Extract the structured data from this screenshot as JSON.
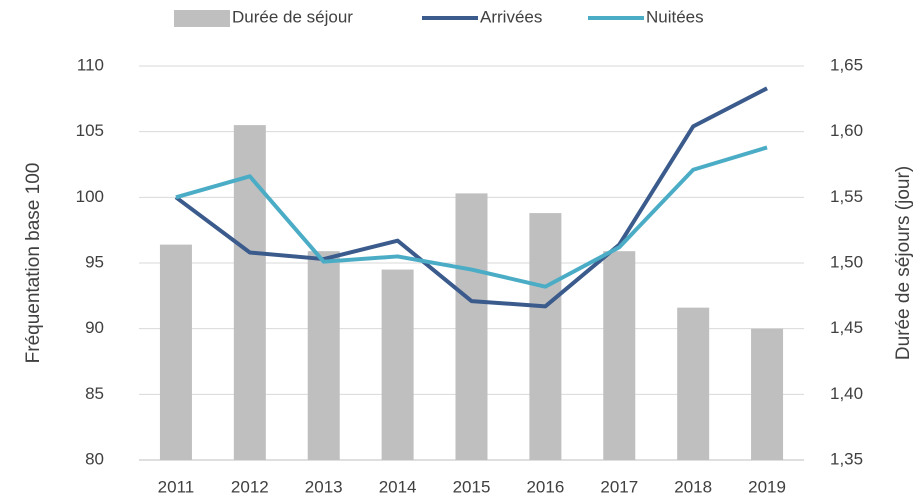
{
  "chart_data": {
    "type": "bar-line",
    "categories": [
      "2011",
      "2012",
      "2013",
      "2014",
      "2015",
      "2016",
      "2017",
      "2018",
      "2019"
    ],
    "series": [
      {
        "name": "Durée de séjour",
        "type": "bar",
        "axis": "y2",
        "color": "#bfbfbf",
        "values": [
          1.514,
          1.605,
          1.509,
          1.495,
          1.553,
          1.538,
          1.509,
          1.466,
          1.45
        ]
      },
      {
        "name": "Arrivées",
        "type": "line",
        "color": "#3a5b8c",
        "values": [
          100,
          95.8,
          95.3,
          96.7,
          92.1,
          91.7,
          96.4,
          105.4,
          108.3
        ]
      },
      {
        "name": "Nuitées",
        "type": "line",
        "color": "#4bacc6",
        "values": [
          100,
          101.6,
          95.1,
          95.5,
          94.5,
          93.2,
          96.2,
          102.1,
          103.8
        ]
      }
    ],
    "ylabel": "Fréquentation base 100",
    "y2label": "Durée de séjours (jour)",
    "ylim": [
      80,
      110
    ],
    "yticks": [
      80,
      85,
      90,
      95,
      100,
      105,
      110
    ],
    "y2lim": [
      1.35,
      1.65
    ],
    "y2ticks": [
      {
        "value": 1.35,
        "label": "1,35"
      },
      {
        "value": 1.4,
        "label": "1,40"
      },
      {
        "value": 1.45,
        "label": "1,45"
      },
      {
        "value": 1.5,
        "label": "1,50"
      },
      {
        "value": 1.55,
        "label": "1,55"
      },
      {
        "value": 1.6,
        "label": "1,60"
      },
      {
        "value": 1.65,
        "label": "1,65"
      }
    ],
    "grid": true,
    "legend": "top"
  }
}
